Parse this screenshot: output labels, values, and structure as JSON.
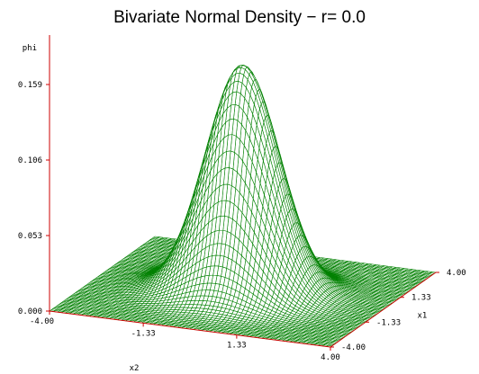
{
  "chart_data": {
    "type": "surface",
    "title": "Bivariate Normal Density − r= 0.0",
    "function": "bivariate standard normal density",
    "r": 0.0,
    "zlabel": "phi",
    "xlabel": "x2",
    "ylabel": "x1",
    "x_range": [
      -4.0,
      4.0
    ],
    "y_range": [
      -4.0,
      4.0
    ],
    "z_range": [
      0.0,
      0.159
    ],
    "z_ticks": [
      "0.000",
      "0.053",
      "0.106",
      "0.159"
    ],
    "x_ticks": [
      "-4.00",
      "-1.33",
      "1.33",
      "4.00"
    ],
    "y_ticks": [
      "-4.00",
      "-1.33",
      "1.33",
      "4.00"
    ],
    "peak": {
      "x": 0,
      "y": 0,
      "z": 0.159
    },
    "mesh_color": "#008000",
    "axis_color": "#cc0000"
  }
}
